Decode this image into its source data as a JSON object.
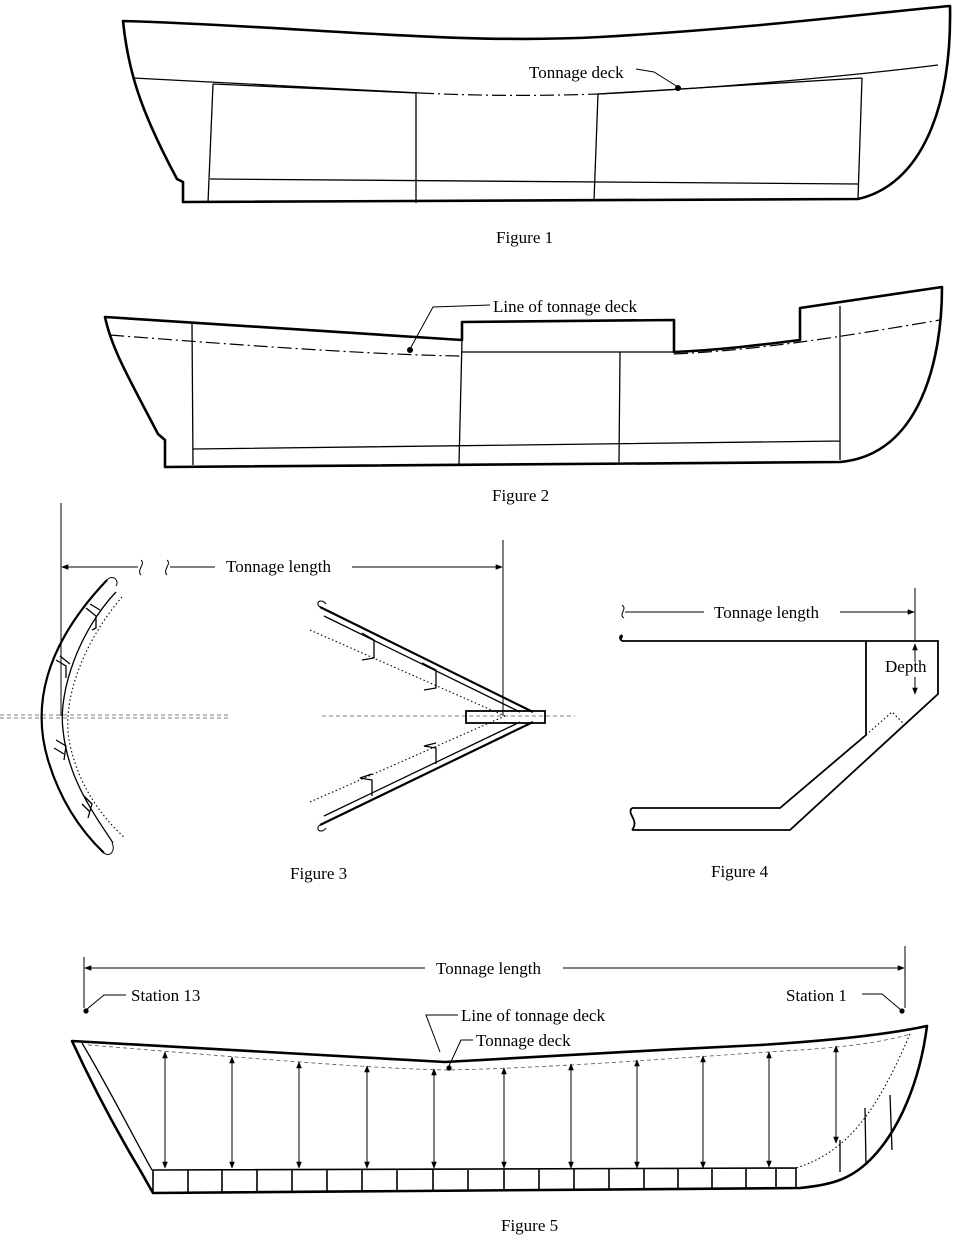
{
  "figure1": {
    "caption": "Figure 1",
    "label_tonnage_deck": "Tonnage deck"
  },
  "figure2": {
    "caption": "Figure 2",
    "label_line_of_tonnage_deck": "Line of tonnage deck"
  },
  "figure3": {
    "caption": "Figure 3",
    "label_tonnage_length": "Tonnage length"
  },
  "figure4": {
    "caption": "Figure 4",
    "label_tonnage_length": "Tonnage length",
    "label_depth": "Depth"
  },
  "figure5": {
    "caption": "Figure 5",
    "label_tonnage_length": "Tonnage length",
    "label_station_13": "Station 13",
    "label_station_1": "Station 1",
    "label_line_of_tonnage_deck": "Line of tonnage deck",
    "label_tonnage_deck": "Tonnage deck"
  },
  "colors": {
    "ink": "#000000",
    "background": "#ffffff"
  }
}
